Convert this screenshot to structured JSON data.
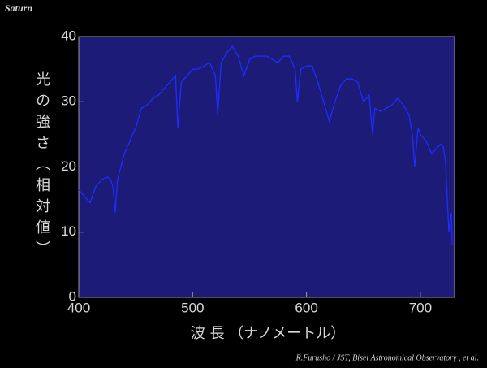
{
  "chart_data": {
    "type": "line",
    "title": "Saturn",
    "x_label": "波 長 （ナノメートル）",
    "y_label": "光の強さ（相対値）",
    "credit": "R.Furusho / JST, Bisei Astronomical Observatory , et al.",
    "x": [
      400,
      405,
      410,
      415,
      420,
      425,
      428,
      430,
      432,
      434,
      440,
      445,
      450,
      455,
      460,
      465,
      470,
      475,
      480,
      485,
      487,
      490,
      495,
      500,
      505,
      510,
      515,
      520,
      522,
      525,
      530,
      535,
      540,
      545,
      550,
      555,
      560,
      565,
      570,
      575,
      580,
      585,
      590,
      592,
      595,
      600,
      605,
      610,
      615,
      620,
      625,
      630,
      635,
      640,
      645,
      650,
      655,
      658,
      660,
      665,
      670,
      675,
      680,
      685,
      690,
      693,
      695,
      698,
      700,
      705,
      710,
      715,
      718,
      720,
      722,
      725,
      727,
      728
    ],
    "series": [
      {
        "color": "#1f2cff",
        "values": [
          16.5,
          15.5,
          14.5,
          17,
          18,
          18.5,
          18,
          17,
          13,
          18,
          22,
          24,
          26,
          29,
          29.5,
          30.5,
          31,
          32,
          33,
          34,
          26,
          33,
          34,
          35,
          35,
          35.5,
          36,
          34,
          28,
          36,
          37.5,
          38.5,
          37,
          34,
          36.5,
          37,
          37,
          37,
          36.5,
          36,
          37,
          37,
          35,
          30,
          35,
          35.5,
          35.5,
          33,
          30,
          27,
          30,
          32.5,
          33.5,
          33.5,
          33,
          30,
          31,
          25,
          29,
          28.5,
          29,
          29.5,
          30.5,
          29.5,
          28,
          25,
          20,
          26,
          25,
          24,
          22,
          23,
          23.5,
          23,
          21,
          10,
          13,
          8
        ]
      }
    ],
    "xlim": [
      400,
      730
    ],
    "ylim": [
      0,
      40
    ],
    "xticks": [
      400,
      500,
      600,
      700
    ],
    "yticks": [
      0,
      10,
      20,
      30,
      40
    ]
  }
}
